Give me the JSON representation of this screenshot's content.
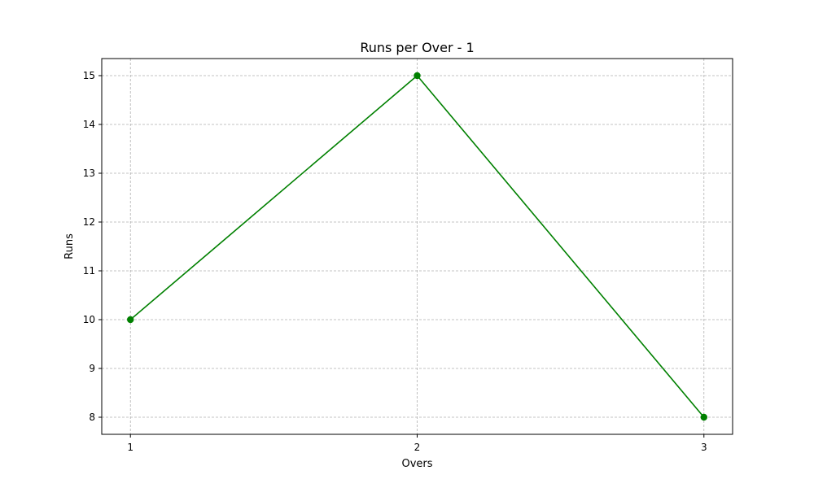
{
  "chart_data": {
    "type": "line",
    "title": "Runs per Over - 1",
    "xlabel": "Overs",
    "ylabel": "Runs",
    "x": [
      1,
      2,
      3
    ],
    "xticks": [
      "1",
      "2",
      "3"
    ],
    "yticks": [
      8,
      9,
      10,
      11,
      12,
      13,
      14,
      15
    ],
    "xlim": [
      0.9,
      3.1
    ],
    "ylim": [
      7.65,
      15.35
    ],
    "grid": true,
    "series": [
      {
        "values": [
          10,
          15,
          8
        ],
        "color": "#008000",
        "marker": "circle",
        "line_style": "solid"
      }
    ]
  }
}
